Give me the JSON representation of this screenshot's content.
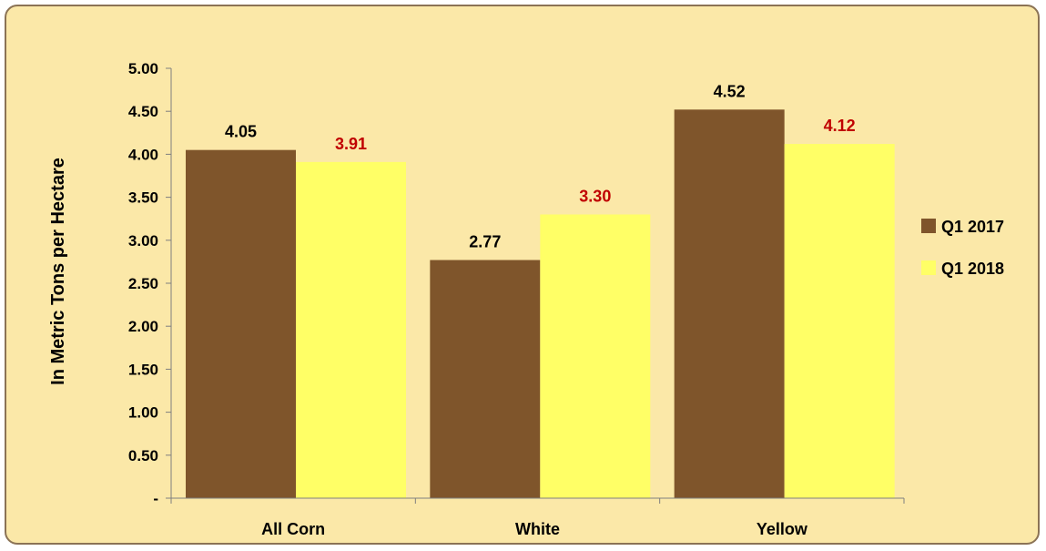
{
  "chart_data": {
    "type": "bar",
    "title": "",
    "xlabel": "",
    "ylabel": "In Metric Tons per Hectare",
    "categories": [
      "All Corn",
      "White",
      "Yellow"
    ],
    "series": [
      {
        "name": "Q1 2017",
        "values": [
          4.05,
          2.77,
          4.52
        ],
        "labels": [
          "4.05",
          "2.77",
          "4.52"
        ],
        "color": "#7F552B",
        "label_color": "#000000"
      },
      {
        "name": "Q1 2018",
        "values": [
          3.91,
          3.3,
          4.12
        ],
        "labels": [
          "3.91",
          "3.30",
          "4.12"
        ],
        "color": "#FFFF66",
        "label_color": "#C00000"
      }
    ],
    "ylim": [
      0,
      5
    ],
    "yticks": [
      0,
      0.5,
      1,
      1.5,
      2,
      2.5,
      3,
      3.5,
      4,
      4.5,
      5
    ],
    "ytick_labels": [
      "-",
      "0.50",
      "1.00",
      "1.50",
      "2.00",
      "2.50",
      "3.00",
      "3.50",
      "4.00",
      "4.50",
      "5.00"
    ],
    "grid": false,
    "legend_position": "right",
    "background_color": "#FBE8A8"
  }
}
